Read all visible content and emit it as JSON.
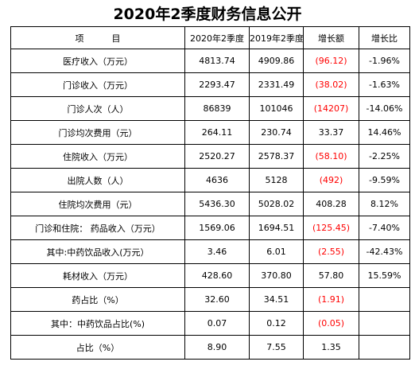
{
  "title": "2020年2季度财务信息公开",
  "header": {
    "item": "项          目",
    "col_2020": "2020年2季度",
    "col_2019": "2019年2季度",
    "growth_amount": "增长额",
    "growth_rate": "增长比"
  },
  "rows": [
    {
      "item": "医疗收入（万元）",
      "v2020": "4813.74",
      "v2019": "4909.86",
      "amount": "(96.12)",
      "amount_negative": true,
      "rate": "-1.96%"
    },
    {
      "item": "门诊收入（万元）",
      "v2020": "2293.47",
      "v2019": "2331.49",
      "amount": "(38.02)",
      "amount_negative": true,
      "rate": "-1.63%"
    },
    {
      "item": "门诊人次（人）",
      "v2020": "86839",
      "v2019": "101046",
      "amount": "(14207)",
      "amount_negative": true,
      "rate": "-14.06%"
    },
    {
      "item": "门诊均次费用（元）",
      "v2020": "264.11",
      "v2019": "230.74",
      "amount": "33.37",
      "amount_negative": false,
      "rate": "14.46%"
    },
    {
      "item": "住院收入（万元）",
      "v2020": "2520.27",
      "v2019": "2578.37",
      "amount": "(58.10)",
      "amount_negative": true,
      "rate": "-2.25%"
    },
    {
      "item": "出院人数（人）",
      "v2020": "4636",
      "v2019": "5128",
      "amount": "(492)",
      "amount_negative": true,
      "rate": "-9.59%"
    },
    {
      "item": "住院均次费用（元）",
      "v2020": "5436.30",
      "v2019": "5028.02",
      "amount": "408.28",
      "amount_negative": false,
      "rate": "8.12%"
    },
    {
      "item": "门诊和住院： 药品收入（万元）",
      "v2020": "1569.06",
      "v2019": "1694.51",
      "amount": "(125.45)",
      "amount_negative": true,
      "rate": "-7.40%"
    },
    {
      "item": "其中:中药饮品收入(万元）",
      "v2020": "3.46",
      "v2019": "6.01",
      "amount": "(2.55)",
      "amount_negative": true,
      "rate": "-42.43%"
    },
    {
      "item": "耗材收入（万元）",
      "v2020": "428.60",
      "v2019": "370.80",
      "amount": "57.80",
      "amount_negative": false,
      "rate": "15.59%"
    },
    {
      "item": "药占比（%）",
      "v2020": "32.60",
      "v2019": "34.51",
      "amount": "(1.91)",
      "amount_negative": true,
      "rate": ""
    },
    {
      "item": "其中：中药饮品占比(%)",
      "v2020": "0.07",
      "v2019": "0.12",
      "amount": "(0.05)",
      "amount_negative": true,
      "rate": ""
    },
    {
      "item": "占比（%）",
      "v2020": "8.90",
      "v2019": "7.55",
      "amount": "1.35",
      "amount_negative": false,
      "rate": ""
    }
  ],
  "colors": {
    "negative": "#ff0000",
    "text": "#000000",
    "border": "#000000"
  }
}
